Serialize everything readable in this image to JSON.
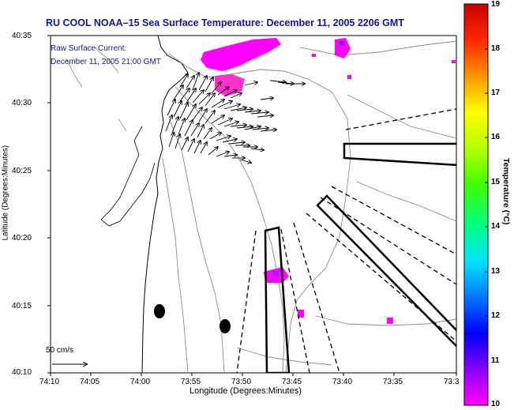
{
  "title": "RU COOL  NOAA–15  Sea Surface Temperature:  December 11, 2005 2206 GMT",
  "legend": {
    "current_label": "Raw Surface Current:",
    "current_time": "December 11, 2005 21:00 GMT"
  },
  "axes": {
    "xlabel": "Longitude (Degrees:Minutes)",
    "ylabel": "Latitude (Degrees:Minutes)",
    "xticks": [
      "74:10",
      "74:05",
      "74:00",
      "73:55",
      "73:50",
      "73:45",
      "73:40",
      "73:35",
      "73:3"
    ],
    "yticks": [
      "40:35",
      "40:30",
      "40:25",
      "40:20",
      "40:15",
      "40:10"
    ]
  },
  "scale": {
    "label": "50 cm/s"
  },
  "colorbar": {
    "label": "Temperature (°C)",
    "ticks": [
      "19",
      "18",
      "17",
      "16",
      "15",
      "14",
      "13",
      "12",
      "11",
      "10"
    ],
    "min": 10,
    "max": 19
  }
}
